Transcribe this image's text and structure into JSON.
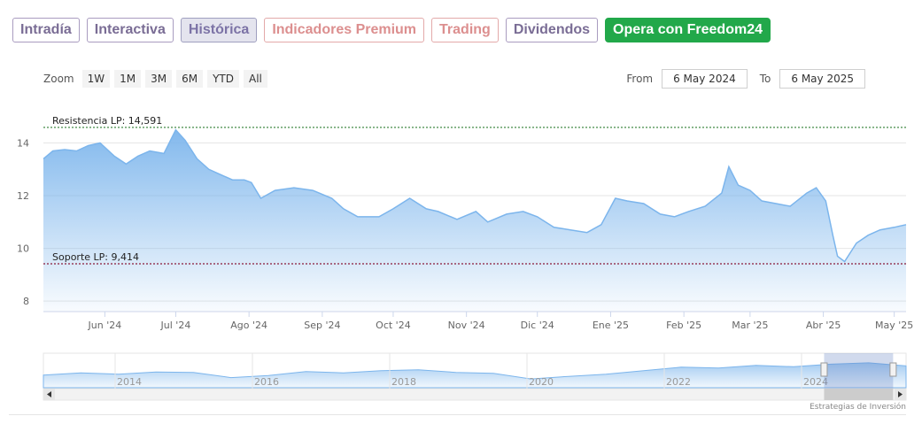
{
  "tabs": [
    {
      "label": "Intradía",
      "style": "purple"
    },
    {
      "label": "Interactiva",
      "style": "purple"
    },
    {
      "label": "Histórica",
      "style": "active"
    },
    {
      "label": "Indicadores Premium",
      "style": "red"
    },
    {
      "label": "Trading",
      "style": "red"
    },
    {
      "label": "Dividendos",
      "style": "purple"
    },
    {
      "label": "Opera con Freedom24",
      "style": "cta"
    }
  ],
  "zoom": {
    "label": "Zoom",
    "buttons": [
      "1W",
      "1M",
      "3M",
      "6M",
      "YTD",
      "All"
    ]
  },
  "range": {
    "from_label": "From",
    "from_value": "6 May 2024",
    "to_label": "To",
    "to_value": "6 May 2025"
  },
  "credit": "Estrategias de Inversión",
  "colors": {
    "line": "#7cb5ec",
    "resistance": "#2e7d32",
    "support": "#8b1a3a",
    "cta": "#22a84a"
  },
  "chart_data": {
    "type": "area",
    "ylim": [
      7.6,
      15.9
    ],
    "yticks": [
      8,
      10,
      12,
      14
    ],
    "x_range": [
      "2024-05-06",
      "2025-05-06"
    ],
    "xticks": [
      {
        "date": "2024-06-01",
        "label": "Jun '24"
      },
      {
        "date": "2024-07-01",
        "label": "Jul '24"
      },
      {
        "date": "2024-08-01",
        "label": "Ago '24"
      },
      {
        "date": "2024-09-01",
        "label": "Sep '24"
      },
      {
        "date": "2024-10-01",
        "label": "Oct '24"
      },
      {
        "date": "2024-11-01",
        "label": "Nov '24"
      },
      {
        "date": "2024-12-01",
        "label": "Dic '24"
      },
      {
        "date": "2025-01-01",
        "label": "Ene '25"
      },
      {
        "date": "2025-02-01",
        "label": "Feb '25"
      },
      {
        "date": "2025-03-01",
        "label": "Mar '25"
      },
      {
        "date": "2025-04-01",
        "label": "Abr '25"
      },
      {
        "date": "2025-05-01",
        "label": "May '25"
      }
    ],
    "series": [
      {
        "x": [
          "2024-05-06",
          "2024-05-10",
          "2024-05-15",
          "2024-05-20",
          "2024-05-25",
          "2024-05-30",
          "2024-06-05",
          "2024-06-10",
          "2024-06-15",
          "2024-06-20",
          "2024-06-26",
          "2024-07-01",
          "2024-07-05",
          "2024-07-10",
          "2024-07-15",
          "2024-07-20",
          "2024-07-25",
          "2024-07-30",
          "2024-08-02",
          "2024-08-06",
          "2024-08-12",
          "2024-08-20",
          "2024-08-28",
          "2024-09-05",
          "2024-09-10",
          "2024-09-16",
          "2024-09-25",
          "2024-10-01",
          "2024-10-08",
          "2024-10-15",
          "2024-10-20",
          "2024-10-28",
          "2024-11-05",
          "2024-11-10",
          "2024-11-18",
          "2024-11-25",
          "2024-12-01",
          "2024-12-08",
          "2024-12-15",
          "2024-12-22",
          "2024-12-28",
          "2025-01-03",
          "2025-01-08",
          "2025-01-15",
          "2025-01-22",
          "2025-01-28",
          "2025-02-03",
          "2025-02-10",
          "2025-02-17",
          "2025-02-20",
          "2025-02-24",
          "2025-03-01",
          "2025-03-06",
          "2025-03-12",
          "2025-03-18",
          "2025-03-25",
          "2025-03-29",
          "2025-04-02",
          "2025-04-05",
          "2025-04-07",
          "2025-04-10",
          "2025-04-15",
          "2025-04-20",
          "2025-04-25",
          "2025-05-01",
          "2025-05-06"
        ],
        "values": [
          13.4,
          13.7,
          13.75,
          13.7,
          13.9,
          14.0,
          13.5,
          13.2,
          13.5,
          13.7,
          13.6,
          14.5,
          14.1,
          13.4,
          13.0,
          12.8,
          12.6,
          12.6,
          12.5,
          11.9,
          12.2,
          12.3,
          12.2,
          11.9,
          11.5,
          11.2,
          11.2,
          11.5,
          11.9,
          11.5,
          11.4,
          11.1,
          11.4,
          11.0,
          11.3,
          11.4,
          11.2,
          10.8,
          10.7,
          10.6,
          10.9,
          11.9,
          11.8,
          11.7,
          11.3,
          11.2,
          11.4,
          11.6,
          12.1,
          13.1,
          12.4,
          12.2,
          11.8,
          11.7,
          11.6,
          12.1,
          12.3,
          11.8,
          10.5,
          9.7,
          9.5,
          10.2,
          10.5,
          10.7,
          10.8,
          10.9
        ]
      }
    ],
    "annotations": [
      {
        "label": "Resistencia LP: 14,591",
        "value": 14.591,
        "color": "#2e7d32"
      },
      {
        "label": "Soporte LP: 9,414",
        "value": 9.414,
        "color": "#8b1a3a"
      }
    ],
    "navigator": {
      "year_labels": [
        "2014",
        "2016",
        "2018",
        "2020",
        "2022",
        "2024"
      ],
      "values": [
        6.4,
        6.9,
        6.6,
        7.1,
        7.0,
        5.8,
        6.3,
        7.2,
        6.9,
        7.4,
        7.6,
        7.0,
        6.8,
        5.5,
        6.1,
        6.6,
        7.4,
        8.2,
        8.0,
        8.6,
        8.3,
        8.9,
        9.2,
        8.5
      ],
      "selected_fraction": [
        0.905,
        0.985
      ]
    },
    "grid": true
  }
}
